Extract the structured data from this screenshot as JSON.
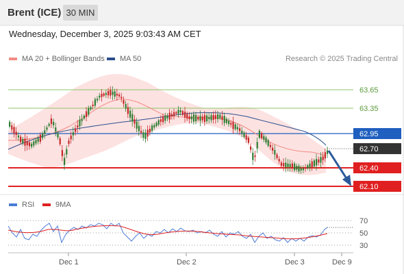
{
  "header": {
    "symbol": "Brent (ICE)",
    "interval": "30 MIN"
  },
  "datetime": "Wednesday, December 3, 2025 9:03:43 AM CET",
  "legend": {
    "ma20": {
      "label": "MA 20 + Bollinger Bands",
      "color": "#f28b82"
    },
    "ma50": {
      "label": "MA 50",
      "color": "#2b4f8c"
    },
    "credit": "Research © 2025 Trading Central"
  },
  "price_levels": [
    {
      "value": "63.65",
      "kind": "resistance-line",
      "color": "#8fc66b"
    },
    {
      "value": "63.35",
      "kind": "resistance-line",
      "color": "#8fc66b"
    },
    {
      "value": "62.95",
      "kind": "pivot",
      "color": "#1f5fbf"
    },
    {
      "value": "62.70",
      "kind": "last-price",
      "color": "#333333"
    },
    {
      "value": "62.40",
      "kind": "support",
      "color": "#e02020"
    },
    {
      "value": "62.10",
      "kind": "support",
      "color": "#e02020"
    }
  ],
  "rsi_legend": {
    "rsi": {
      "label": "RSI",
      "color": "#4a7bd6"
    },
    "ma9": {
      "label": "9MA",
      "color": "#e02020"
    }
  },
  "rsi_axis": [
    "70",
    "50",
    "30"
  ],
  "x_axis": [
    "Dec 1",
    "Dec 2",
    "Dec 3",
    "Dec 9"
  ],
  "colors": {
    "up": "#2e7d32",
    "down": "#c62828",
    "band": "#fde2e2",
    "arrow": "#2b5a9a"
  }
}
